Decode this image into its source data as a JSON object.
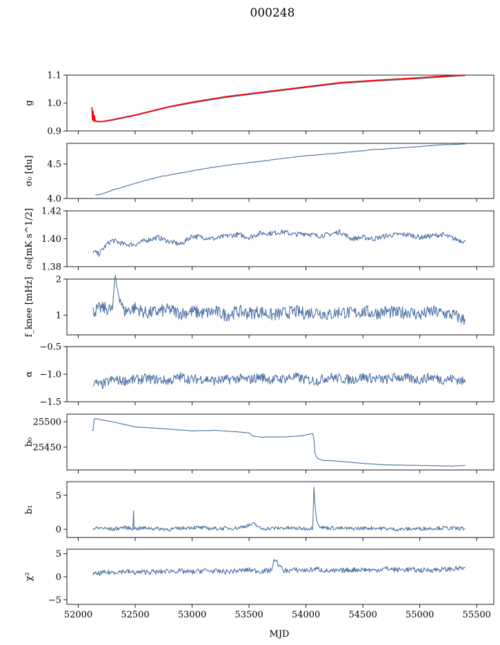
{
  "figure": {
    "title": "000248",
    "xlabel": "MJD",
    "xlim": [
      51900,
      55650
    ],
    "xticks": [
      52000,
      52500,
      53000,
      53500,
      54000,
      54500,
      55000,
      55500
    ],
    "x_tick_labels": [
      "52000",
      "52500",
      "53000",
      "53500",
      "54000",
      "54500",
      "55000",
      "55500"
    ],
    "colors": {
      "line": "#4c72a4",
      "fit": "#ff0000"
    }
  },
  "panels": [
    {
      "id": "g",
      "ylabel": "g",
      "ylim": [
        0.9,
        1.1
      ],
      "yticks": [
        0.9,
        1.0,
        1.1
      ],
      "ytick_labels": [
        "0.9",
        "1.0",
        "1.1"
      ]
    },
    {
      "id": "sigma0-du",
      "ylabel": "σ₀ [du]",
      "ylim": [
        4.0,
        4.8
      ],
      "yticks": [
        4.0,
        4.5
      ],
      "ytick_labels": [
        "4.0",
        "4.5"
      ]
    },
    {
      "id": "sigma0-mk",
      "ylabel": "σ₀[mK s^1/2]",
      "ylim": [
        1.38,
        1.42
      ],
      "yticks": [
        1.38,
        1.4,
        1.42
      ],
      "ytick_labels": [
        "1.38",
        "1.40",
        "1.42"
      ]
    },
    {
      "id": "fknee",
      "ylabel": "f_knee [mHz]",
      "ylim": [
        0.45,
        2.0
      ],
      "yticks": [
        1,
        2
      ],
      "ytick_labels": [
        "1",
        "2"
      ]
    },
    {
      "id": "alpha",
      "ylabel": "α",
      "ylim": [
        -1.5,
        -0.5
      ],
      "yticks": [
        -1.5,
        -1.0,
        -0.5
      ],
      "ytick_labels": [
        "−1.5",
        "−1.0",
        "−0.5"
      ]
    },
    {
      "id": "b0",
      "ylabel": "b₀",
      "ylim": [
        25405,
        25515
      ],
      "yticks": [
        25450,
        25500
      ],
      "ytick_labels": [
        "25450",
        "25500"
      ]
    },
    {
      "id": "b1",
      "ylabel": "b₁",
      "ylim": [
        -1.2,
        7.0
      ],
      "yticks": [
        0,
        5
      ],
      "ytick_labels": [
        "0",
        "5"
      ]
    },
    {
      "id": "chi2",
      "ylabel": "χ²",
      "ylim": [
        -6.0,
        6.0
      ],
      "yticks": [
        -5,
        0,
        5
      ],
      "ytick_labels": [
        "−5",
        "0",
        "5"
      ]
    }
  ],
  "chart_data": [
    {
      "type": "line",
      "panel": "g",
      "series": [
        {
          "x": [
            52120,
            52150,
            52200,
            52300,
            52500,
            52800,
            53000,
            53300,
            53500,
            53800,
            54000,
            54300,
            54600,
            54900,
            55200,
            55400
          ],
          "y": [
            0.94,
            0.933,
            0.932,
            0.938,
            0.955,
            0.985,
            1.0,
            1.02,
            1.03,
            1.045,
            1.055,
            1.07,
            1.078,
            1.085,
            1.093,
            1.098
          ]
        },
        {
          "name": "",
          "x": [
            52120,
            52125,
            52130,
            52135,
            52140,
            52150,
            52200,
            52300,
            52500,
            52800,
            53000,
            53300,
            53500,
            53800,
            54000,
            54300,
            54600,
            54900,
            55200,
            55400
          ],
          "y": [
            0.985,
            0.94,
            0.97,
            0.935,
            0.955,
            0.935,
            0.933,
            0.94,
            0.957,
            0.987,
            1.003,
            1.023,
            1.033,
            1.048,
            1.058,
            1.073,
            1.081,
            1.088,
            1.096,
            1.1
          ]
        }
      ]
    },
    {
      "type": "line",
      "panel": "sigma0-du",
      "series": [
        {
          "x": [
            52150,
            52200,
            52300,
            52500,
            52700,
            52900,
            53100,
            53300,
            53500,
            53800,
            54000,
            54300,
            54600,
            54900,
            55200,
            55400
          ],
          "y": [
            4.05,
            4.06,
            4.12,
            4.22,
            4.31,
            4.37,
            4.43,
            4.48,
            4.52,
            4.58,
            4.62,
            4.66,
            4.71,
            4.74,
            4.78,
            4.79
          ]
        }
      ]
    },
    {
      "type": "line",
      "panel": "sigma0-mk",
      "series": [
        {
          "x": [
            52130,
            52180,
            52250,
            52300,
            52400,
            52500,
            52600,
            52700,
            52800,
            52900,
            53000,
            53100,
            53200,
            53300,
            53400,
            53500,
            53600,
            53700,
            53800,
            53900,
            54000,
            54100,
            54200,
            54300,
            54400,
            54500,
            54600,
            54700,
            54800,
            54900,
            55000,
            55100,
            55200,
            55300,
            55400
          ],
          "y": [
            1.391,
            1.389,
            1.396,
            1.399,
            1.396,
            1.396,
            1.399,
            1.401,
            1.398,
            1.396,
            1.402,
            1.401,
            1.4,
            1.402,
            1.403,
            1.401,
            1.404,
            1.404,
            1.405,
            1.403,
            1.404,
            1.402,
            1.403,
            1.405,
            1.4,
            1.401,
            1.4,
            1.402,
            1.403,
            1.403,
            1.401,
            1.402,
            1.403,
            1.4,
            1.398
          ]
        }
      ]
    },
    {
      "type": "line",
      "panel": "fknee",
      "series": [
        {
          "x": [
            52130,
            52200,
            52300,
            52320,
            52400,
            52500,
            52600,
            52700,
            52800,
            52900,
            53000,
            53100,
            53200,
            53300,
            53400,
            53500,
            53600,
            53700,
            53800,
            53900,
            54000,
            54100,
            54200,
            54300,
            54400,
            54500,
            54600,
            54700,
            54800,
            54900,
            55000,
            55100,
            55200,
            55300,
            55400
          ],
          "y": [
            1.1,
            1.2,
            1.15,
            2.0,
            1.1,
            1.2,
            1.05,
            1.1,
            1.15,
            1.05,
            1.1,
            1.05,
            1.1,
            1.0,
            1.1,
            1.05,
            1.1,
            1.0,
            1.05,
            1.1,
            1.05,
            1.1,
            1.0,
            1.1,
            1.05,
            1.1,
            1.05,
            1.1,
            1.05,
            1.1,
            1.0,
            1.1,
            1.05,
            1.0,
            0.85
          ]
        }
      ]
    },
    {
      "type": "line",
      "panel": "alpha",
      "series": [
        {
          "x": [
            52130,
            52200,
            52300,
            52400,
            52500,
            52600,
            52700,
            52800,
            52900,
            53000,
            53100,
            53200,
            53300,
            53400,
            53500,
            53600,
            53700,
            53800,
            53900,
            54000,
            54100,
            54200,
            54300,
            54400,
            54500,
            54600,
            54700,
            54800,
            54900,
            55000,
            55100,
            55200,
            55300,
            55400
          ],
          "y": [
            -1.15,
            -1.2,
            -1.1,
            -1.12,
            -1.1,
            -1.08,
            -1.1,
            -1.12,
            -1.05,
            -1.1,
            -1.08,
            -1.12,
            -1.1,
            -1.08,
            -1.1,
            -1.05,
            -1.1,
            -1.08,
            -1.05,
            -1.1,
            -1.12,
            -1.05,
            -1.08,
            -1.1,
            -1.05,
            -1.08,
            -1.1,
            -1.05,
            -1.08,
            -1.1,
            -1.05,
            -1.1,
            -1.08,
            -1.15
          ]
        }
      ]
    },
    {
      "type": "line",
      "panel": "b0",
      "series": [
        {
          "x": [
            52120,
            52130,
            52140,
            52150,
            52300,
            52500,
            52700,
            53000,
            53200,
            53400,
            53500,
            53530,
            53600,
            53800,
            53950,
            54060,
            54070,
            54080,
            54100,
            54150,
            54250,
            54500,
            54700,
            55000,
            55200,
            55300,
            55400
          ],
          "y": [
            25483,
            25483,
            25506,
            25506,
            25500,
            25490,
            25487,
            25482,
            25483,
            25480,
            25478,
            25472,
            25470,
            25470,
            25472,
            25477,
            25465,
            25437,
            25428,
            25424,
            25423,
            25418,
            25415,
            25414,
            25413,
            25413,
            25414
          ]
        }
      ]
    },
    {
      "type": "line",
      "panel": "b1",
      "series": [
        {
          "x": [
            52130,
            52200,
            52300,
            52400,
            52480,
            52485,
            52490,
            52500,
            52600,
            52800,
            53000,
            53200,
            53400,
            53550,
            53600,
            53800,
            54000,
            54060,
            54070,
            54080,
            54090,
            54110,
            54130,
            54200,
            54400,
            54600,
            54800,
            55000,
            55200,
            55400
          ],
          "y": [
            0.1,
            0.2,
            0.0,
            0.3,
            0.1,
            2.7,
            0.2,
            0.1,
            0.2,
            0.0,
            0.3,
            0.1,
            0.2,
            0.8,
            0.1,
            0.2,
            0.1,
            0.2,
            6.2,
            3.5,
            1.8,
            0.8,
            0.3,
            0.2,
            0.1,
            0.2,
            0.0,
            0.1,
            0.2,
            0.1
          ]
        }
      ]
    },
    {
      "type": "line",
      "panel": "chi2",
      "series": [
        {
          "x": [
            52130,
            52200,
            52300,
            52400,
            52500,
            52600,
            52700,
            52800,
            52900,
            53000,
            53100,
            53200,
            53300,
            53400,
            53500,
            53600,
            53700,
            53720,
            53800,
            53900,
            54000,
            54100,
            54200,
            54300,
            54400,
            54500,
            54600,
            54700,
            54800,
            54900,
            55000,
            55100,
            55200,
            55300,
            55400
          ],
          "y": [
            0.5,
            0.8,
            1.0,
            1.2,
            0.9,
            1.1,
            1.0,
            1.3,
            1.2,
            1.0,
            1.4,
            1.2,
            1.1,
            1.3,
            1.5,
            1.2,
            1.4,
            4.0,
            1.3,
            1.5,
            1.4,
            1.7,
            1.2,
            1.3,
            1.5,
            1.6,
            1.4,
            1.8,
            1.5,
            1.6,
            1.4,
            1.5,
            1.6,
            1.7,
            1.9
          ]
        }
      ]
    }
  ]
}
